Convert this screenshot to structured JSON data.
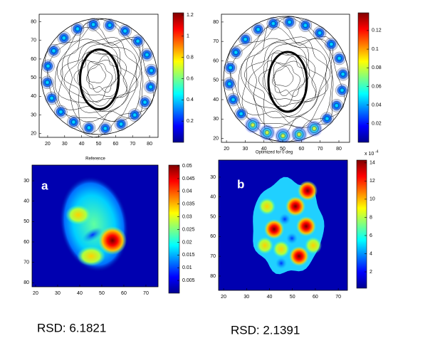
{
  "panels": [
    {
      "kind": "contour",
      "xlim": [
        15,
        85
      ],
      "ylim": [
        18,
        84
      ],
      "xticks": [
        20,
        30,
        40,
        50,
        60,
        70,
        80
      ],
      "yticks": [
        20,
        30,
        40,
        50,
        60,
        70,
        80
      ],
      "colorbar": {
        "lim": [
          0,
          1.22
        ],
        "ticks": [
          0.2,
          0.4,
          0.6,
          0.8,
          1,
          1.2
        ]
      }
    },
    {
      "kind": "contour",
      "xlim": [
        17.3,
        85.7
      ],
      "ylim": [
        18,
        84
      ],
      "xticks": [
        20,
        30,
        40,
        50,
        60,
        70,
        80
      ],
      "yticks": [
        20,
        30,
        40,
        50,
        60,
        70,
        80
      ],
      "colorbar": {
        "lim": [
          0,
          0.139
        ],
        "ticks": [
          0.02,
          0.04,
          0.06,
          0.08,
          0.1,
          0.12
        ]
      }
    },
    {
      "kind": "heatmap",
      "title": "Reference",
      "label": "a",
      "xlim": [
        18.4,
        75.5
      ],
      "ylim": [
        22.3,
        82
      ],
      "y_reversed": true,
      "xticks": [
        20,
        30,
        40,
        50,
        60,
        70
      ],
      "yticks": [
        30,
        40,
        50,
        60,
        70,
        80
      ],
      "colorbar": {
        "lim": [
          0,
          0.0503
        ],
        "ticks": [
          0.005,
          0.01,
          0.015,
          0.02,
          0.025,
          0.03,
          0.035,
          0.04,
          0.045,
          0.05
        ]
      }
    },
    {
      "kind": "heatmap",
      "title": "Optimized for 0 deg",
      "label": "b",
      "xlim": [
        17.8,
        74
      ],
      "ylim": [
        21.4,
        87.2
      ],
      "y_reversed": true,
      "xticks": [
        20,
        30,
        40,
        50,
        60,
        70
      ],
      "yticks": [
        30,
        40,
        50,
        60,
        70,
        80
      ],
      "colorbar": {
        "lim": [
          0.2,
          14.3
        ],
        "ticks": [
          2,
          4,
          6,
          8,
          10,
          12,
          14
        ],
        "multiplier": "x 10",
        "exponent": "-4"
      }
    }
  ],
  "footer": [
    "RSD: 6.1821",
    "RSD: 2.1391"
  ]
}
